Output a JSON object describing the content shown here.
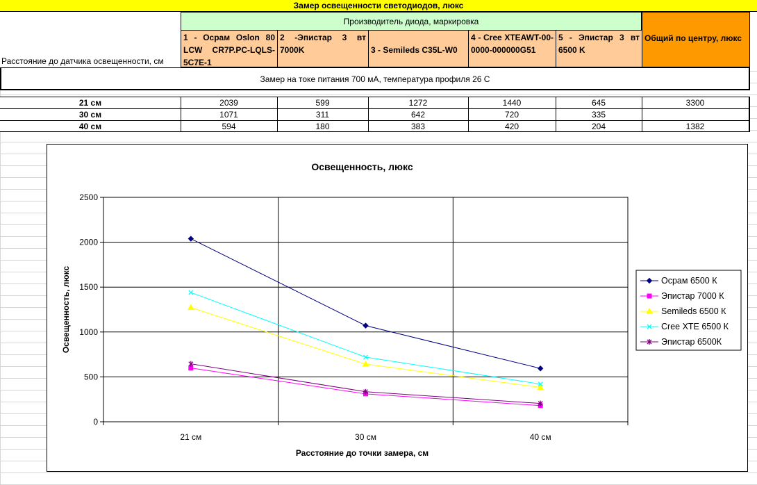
{
  "sheet": {
    "title": "Замер освещенности светодиодов, люкс",
    "row_header_label": "Расстояние до датчика освещенности, см",
    "manufacturer_header": "Производитель диода, маркировка",
    "columns": [
      "1 - Осрам Oslon 80 LCW CR7P.PC-LQLS-5C7E-1",
      "2 -Эпистар 3 вт 7000K",
      "3 - Semileds C35L-W0",
      "4 - Cree XTEAWT-00-0000-000000G51",
      "5 - Эпистар 3 вт 6500 K",
      "Общий по центру, люкс"
    ],
    "measurement_note": "Замер на токе питания 700 мА, температура профиля 26 С",
    "rows": [
      {
        "label": "21 см",
        "values": [
          "2039",
          "599",
          "1272",
          "1440",
          "645",
          "3300"
        ]
      },
      {
        "label": "30 см",
        "values": [
          "1071",
          "311",
          "642",
          "720",
          "335",
          ""
        ]
      },
      {
        "label": "40 см",
        "values": [
          "594",
          "180",
          "383",
          "420",
          "204",
          "1382"
        ]
      }
    ]
  },
  "chart_data": {
    "type": "line",
    "title": "Освещенность, люкс",
    "xlabel": "Расстояние до точки замера, см",
    "ylabel": "Освещенность, люкс",
    "categories": [
      "21 см",
      "30 см",
      "40 см"
    ],
    "ylim": [
      0,
      2500
    ],
    "yticks": [
      0,
      500,
      1000,
      1500,
      2000,
      2500
    ],
    "grid": true,
    "legend_position": "right",
    "series": [
      {
        "name": "Осрам 6500 К",
        "values": [
          2039,
          1071,
          594
        ],
        "color": "#000080",
        "marker": "diamond"
      },
      {
        "name": "Эпистар 7000 К",
        "values": [
          599,
          311,
          180
        ],
        "color": "#ff00ff",
        "marker": "square"
      },
      {
        "name": "Semileds 6500 К",
        "values": [
          1272,
          642,
          383
        ],
        "color": "#ffff00",
        "marker": "triangle"
      },
      {
        "name": "Cree XTE 6500 К",
        "values": [
          1440,
          720,
          420
        ],
        "color": "#00ffff",
        "marker": "x"
      },
      {
        "name": "Эпистар 6500К",
        "values": [
          645,
          335,
          204
        ],
        "color": "#800080",
        "marker": "star"
      }
    ]
  }
}
